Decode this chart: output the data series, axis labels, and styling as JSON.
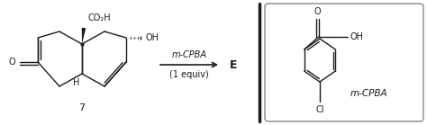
{
  "bg_color": "#ffffff",
  "reagent_line1": "m-CPBA",
  "reagent_line2": "(1 equiv)",
  "product_label": "E",
  "compound_label": "7",
  "mcpba_label": "m-CPBA",
  "text_color": "#1a1a1a",
  "line_color": "#1a1a1a",
  "box_edge_color": "#999999",
  "divider_color": "#1a1a1a",
  "fig_width": 4.74,
  "fig_height": 1.39,
  "dpi": 100
}
